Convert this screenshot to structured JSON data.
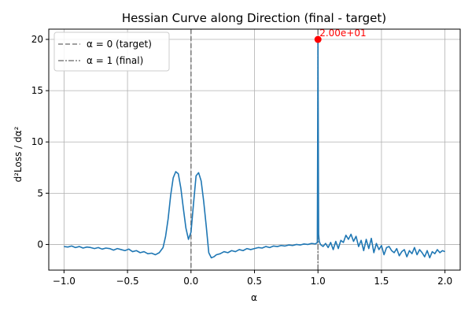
{
  "chart_data": {
    "type": "line",
    "title": "Hessian Curve along Direction (final - target)",
    "xlabel": "α",
    "ylabel": "d²Loss / dα²",
    "xlim": [
      -1.12,
      2.12
    ],
    "ylim": [
      -2.5,
      21.0
    ],
    "xticks": [
      -1.0,
      -0.5,
      0.0,
      0.5,
      1.0,
      1.5,
      2.0
    ],
    "xtick_labels": [
      "−1.0",
      "−0.5",
      "0.0",
      "0.5",
      "1.0",
      "1.5",
      "2.0"
    ],
    "yticks": [
      0,
      5,
      10,
      15,
      20
    ],
    "ytick_labels": [
      "0",
      "5",
      "10",
      "15",
      "20"
    ],
    "grid": true,
    "legend_position": "top-left",
    "series": [
      {
        "values_x": [
          -1.0,
          -0.97,
          -0.94,
          -0.91,
          -0.88,
          -0.85,
          -0.82,
          -0.79,
          -0.76,
          -0.73,
          -0.7,
          -0.67,
          -0.64,
          -0.61,
          -0.58,
          -0.55,
          -0.52,
          -0.49,
          -0.46,
          -0.43,
          -0.4,
          -0.37,
          -0.34,
          -0.31,
          -0.28,
          -0.25,
          -0.22,
          -0.2,
          -0.18,
          -0.16,
          -0.14,
          -0.12,
          -0.1,
          -0.08,
          -0.06,
          -0.04,
          -0.02,
          0.0,
          0.02,
          0.04,
          0.06,
          0.08,
          0.1,
          0.12,
          0.14,
          0.16,
          0.18,
          0.2,
          0.23,
          0.26,
          0.29,
          0.32,
          0.35,
          0.38,
          0.41,
          0.44,
          0.47,
          0.5,
          0.53,
          0.56,
          0.59,
          0.62,
          0.65,
          0.68,
          0.71,
          0.74,
          0.77,
          0.8,
          0.83,
          0.86,
          0.89,
          0.92,
          0.95,
          0.98,
          0.995,
          1.0,
          1.005,
          1.01,
          1.02,
          1.04,
          1.06,
          1.08,
          1.1,
          1.12,
          1.14,
          1.16,
          1.18,
          1.2,
          1.22,
          1.24,
          1.26,
          1.28,
          1.3,
          1.32,
          1.34,
          1.36,
          1.38,
          1.4,
          1.42,
          1.44,
          1.46,
          1.48,
          1.5,
          1.52,
          1.54,
          1.56,
          1.58,
          1.6,
          1.62,
          1.64,
          1.66,
          1.68,
          1.7,
          1.72,
          1.74,
          1.76,
          1.78,
          1.8,
          1.82,
          1.84,
          1.86,
          1.88,
          1.9,
          1.92,
          1.94,
          1.96,
          1.98,
          2.0
        ],
        "values_y": [
          -0.2,
          -0.25,
          -0.15,
          -0.3,
          -0.2,
          -0.35,
          -0.25,
          -0.3,
          -0.4,
          -0.3,
          -0.45,
          -0.35,
          -0.4,
          -0.55,
          -0.4,
          -0.5,
          -0.6,
          -0.45,
          -0.7,
          -0.6,
          -0.8,
          -0.7,
          -0.9,
          -0.85,
          -1.0,
          -0.8,
          -0.3,
          0.8,
          2.5,
          4.8,
          6.5,
          7.1,
          6.9,
          5.5,
          3.5,
          1.6,
          0.5,
          1.2,
          4.0,
          6.7,
          7.0,
          6.2,
          4.2,
          1.8,
          -0.8,
          -1.3,
          -1.2,
          -1.0,
          -0.9,
          -0.7,
          -0.8,
          -0.6,
          -0.7,
          -0.5,
          -0.6,
          -0.4,
          -0.5,
          -0.4,
          -0.3,
          -0.35,
          -0.2,
          -0.3,
          -0.15,
          -0.2,
          -0.1,
          -0.15,
          -0.05,
          -0.1,
          0.0,
          -0.05,
          0.05,
          0.0,
          0.1,
          0.05,
          0.2,
          20.0,
          1.0,
          0.3,
          0.0,
          -0.2,
          0.1,
          -0.3,
          0.2,
          -0.5,
          0.3,
          -0.4,
          0.4,
          0.2,
          0.9,
          0.5,
          1.0,
          0.3,
          0.8,
          -0.2,
          0.4,
          -0.6,
          0.5,
          -0.4,
          0.6,
          -0.8,
          0.1,
          -0.5,
          -0.1,
          -1.0,
          -0.3,
          -0.2,
          -0.6,
          -0.8,
          -0.4,
          -1.1,
          -0.7,
          -0.5,
          -1.2,
          -0.6,
          -0.9,
          -0.3,
          -1.0,
          -0.5,
          -0.8,
          -1.2,
          -0.6,
          -1.3,
          -0.7,
          -0.9,
          -0.5,
          -0.8,
          -0.6,
          -0.7
        ],
        "color": "#1f77b4"
      }
    ],
    "reference_lines": [
      {
        "x": 0.0,
        "label": "α = 0 (target)",
        "style": "dashed",
        "color": "#808080"
      },
      {
        "x": 1.0,
        "label": "α = 1 (final)",
        "style": "dashdot",
        "color": "#808080"
      }
    ],
    "annotation": {
      "x": 1.0,
      "y": 20.0,
      "text": "2.00e+01",
      "color": "#ff0000"
    }
  }
}
